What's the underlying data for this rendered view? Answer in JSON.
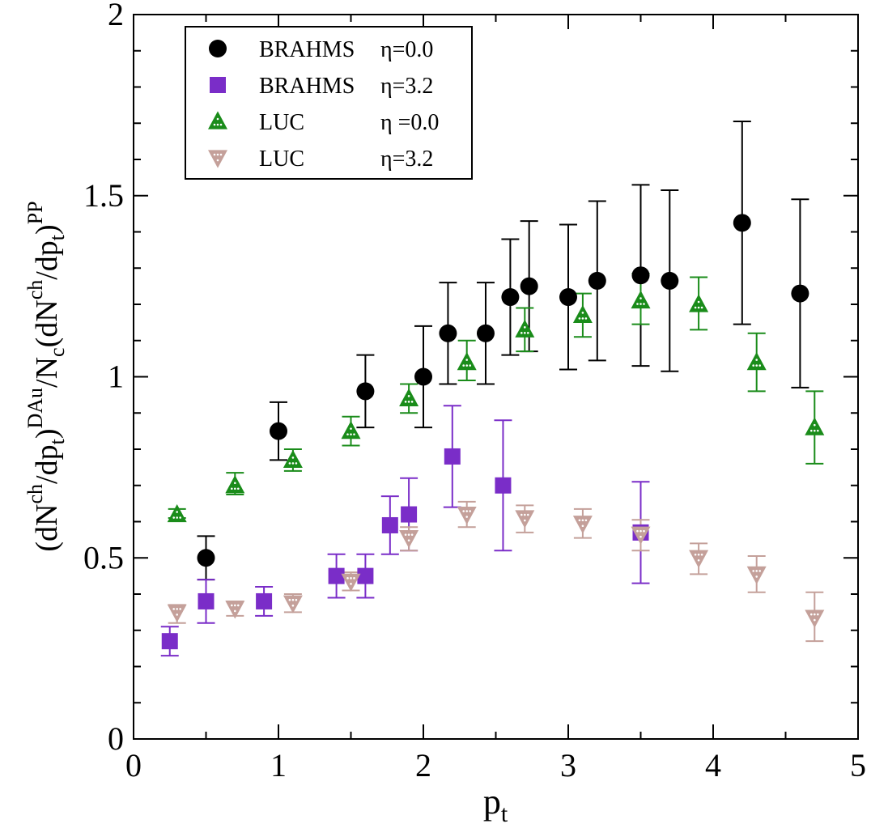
{
  "chart_data": {
    "type": "scatter",
    "xlim": [
      0,
      5
    ],
    "ylim": [
      0,
      2
    ],
    "x_ticks": [
      "0",
      "1",
      "2",
      "3",
      "4",
      "5"
    ],
    "y_ticks": [
      "0",
      "0.5",
      "1",
      "1.5",
      "2"
    ],
    "xlabel": {
      "base": "p",
      "sub": "t"
    },
    "ylabel": {
      "parts": [
        {
          "t": "(dN",
          "k": "n"
        },
        {
          "t": "ch",
          "k": "sup"
        },
        {
          "t": "/dp",
          "k": "n"
        },
        {
          "t": "t",
          "k": "sub"
        },
        {
          "t": ")",
          "k": "n"
        },
        {
          "t": "DAu",
          "k": "sup"
        },
        {
          "t": "/N",
          "k": "n"
        },
        {
          "t": "c",
          "k": "sub"
        },
        {
          "t": "(dN",
          "k": "n"
        },
        {
          "t": "ch",
          "k": "sup"
        },
        {
          "t": "/dp",
          "k": "n"
        },
        {
          "t": "t",
          "k": "sub"
        },
        {
          "t": ")",
          "k": "n"
        },
        {
          "t": "PP",
          "k": "sup"
        }
      ]
    },
    "grid": false,
    "legend_position": "top-left",
    "series": [
      {
        "legend_name": "BRAHMS",
        "legend_eta": "η=0.0",
        "marker": "circle",
        "color": "#000000",
        "points": [
          {
            "x": 0.5,
            "y": 0.5,
            "lo": 0.44,
            "hi": 0.56
          },
          {
            "x": 1.0,
            "y": 0.85,
            "lo": 0.77,
            "hi": 0.93
          },
          {
            "x": 1.6,
            "y": 0.96,
            "lo": 0.86,
            "hi": 1.06
          },
          {
            "x": 2.0,
            "y": 1.0,
            "lo": 0.86,
            "hi": 1.14
          },
          {
            "x": 2.17,
            "y": 1.12,
            "lo": 0.98,
            "hi": 1.26
          },
          {
            "x": 2.43,
            "y": 1.12,
            "lo": 0.98,
            "hi": 1.26
          },
          {
            "x": 2.6,
            "y": 1.22,
            "lo": 1.06,
            "hi": 1.38
          },
          {
            "x": 2.73,
            "y": 1.25,
            "lo": 1.07,
            "hi": 1.43
          },
          {
            "x": 3.0,
            "y": 1.22,
            "lo": 1.02,
            "hi": 1.42
          },
          {
            "x": 3.2,
            "y": 1.265,
            "lo": 1.045,
            "hi": 1.485
          },
          {
            "x": 3.5,
            "y": 1.28,
            "lo": 1.03,
            "hi": 1.53
          },
          {
            "x": 3.7,
            "y": 1.265,
            "lo": 1.015,
            "hi": 1.515
          },
          {
            "x": 4.2,
            "y": 1.425,
            "lo": 1.145,
            "hi": 1.705
          },
          {
            "x": 4.6,
            "y": 1.23,
            "lo": 0.97,
            "hi": 1.49
          }
        ]
      },
      {
        "legend_name": "BRAHMS",
        "legend_eta": "η=3.2",
        "marker": "square",
        "color": "#7a2dc8",
        "points": [
          {
            "x": 0.25,
            "y": 0.27,
            "lo": 0.23,
            "hi": 0.31
          },
          {
            "x": 0.5,
            "y": 0.38,
            "lo": 0.32,
            "hi": 0.44
          },
          {
            "x": 0.9,
            "y": 0.38,
            "lo": 0.34,
            "hi": 0.42
          },
          {
            "x": 1.4,
            "y": 0.45,
            "lo": 0.39,
            "hi": 0.51
          },
          {
            "x": 1.6,
            "y": 0.45,
            "lo": 0.39,
            "hi": 0.51
          },
          {
            "x": 1.77,
            "y": 0.59,
            "lo": 0.51,
            "hi": 0.67
          },
          {
            "x": 1.9,
            "y": 0.62,
            "lo": 0.52,
            "hi": 0.72
          },
          {
            "x": 2.2,
            "y": 0.78,
            "lo": 0.64,
            "hi": 0.92
          },
          {
            "x": 2.55,
            "y": 0.7,
            "lo": 0.52,
            "hi": 0.88
          },
          {
            "x": 3.5,
            "y": 0.57,
            "lo": 0.43,
            "hi": 0.71
          }
        ]
      },
      {
        "legend_name": "LUC",
        "legend_eta": "η =0.0",
        "marker": "triangle-up",
        "color": "#1a8c1a",
        "points": [
          {
            "x": 0.3,
            "y": 0.62,
            "lo": 0.61,
            "hi": 0.635
          },
          {
            "x": 0.7,
            "y": 0.7,
            "lo": 0.675,
            "hi": 0.735
          },
          {
            "x": 1.1,
            "y": 0.77,
            "lo": 0.74,
            "hi": 0.8
          },
          {
            "x": 1.5,
            "y": 0.85,
            "lo": 0.81,
            "hi": 0.89
          },
          {
            "x": 1.9,
            "y": 0.94,
            "lo": 0.9,
            "hi": 0.98
          },
          {
            "x": 2.3,
            "y": 1.04,
            "lo": 0.99,
            "hi": 1.1
          },
          {
            "x": 2.7,
            "y": 1.13,
            "lo": 1.07,
            "hi": 1.19
          },
          {
            "x": 3.1,
            "y": 1.17,
            "lo": 1.11,
            "hi": 1.23
          },
          {
            "x": 3.5,
            "y": 1.21,
            "lo": 1.145,
            "hi": 1.285
          },
          {
            "x": 3.9,
            "y": 1.2,
            "lo": 1.13,
            "hi": 1.275
          },
          {
            "x": 4.3,
            "y": 1.04,
            "lo": 0.96,
            "hi": 1.12
          },
          {
            "x": 4.7,
            "y": 0.86,
            "lo": 0.76,
            "hi": 0.96
          }
        ]
      },
      {
        "legend_name": "LUC",
        "legend_eta": "η=3.2",
        "marker": "triangle-down",
        "color": "#c4a09a",
        "points": [
          {
            "x": 0.3,
            "y": 0.35,
            "lo": 0.32,
            "hi": 0.37
          },
          {
            "x": 0.7,
            "y": 0.36,
            "lo": 0.34,
            "hi": 0.38
          },
          {
            "x": 1.1,
            "y": 0.375,
            "lo": 0.35,
            "hi": 0.4
          },
          {
            "x": 1.5,
            "y": 0.435,
            "lo": 0.41,
            "hi": 0.46
          },
          {
            "x": 1.9,
            "y": 0.555,
            "lo": 0.52,
            "hi": 0.585
          },
          {
            "x": 2.3,
            "y": 0.62,
            "lo": 0.585,
            "hi": 0.655
          },
          {
            "x": 2.7,
            "y": 0.61,
            "lo": 0.57,
            "hi": 0.645
          },
          {
            "x": 3.1,
            "y": 0.595,
            "lo": 0.555,
            "hi": 0.635
          },
          {
            "x": 3.5,
            "y": 0.565,
            "lo": 0.52,
            "hi": 0.605
          },
          {
            "x": 3.9,
            "y": 0.5,
            "lo": 0.455,
            "hi": 0.54
          },
          {
            "x": 4.3,
            "y": 0.455,
            "lo": 0.405,
            "hi": 0.505
          },
          {
            "x": 4.7,
            "y": 0.335,
            "lo": 0.27,
            "hi": 0.405
          }
        ]
      }
    ]
  }
}
